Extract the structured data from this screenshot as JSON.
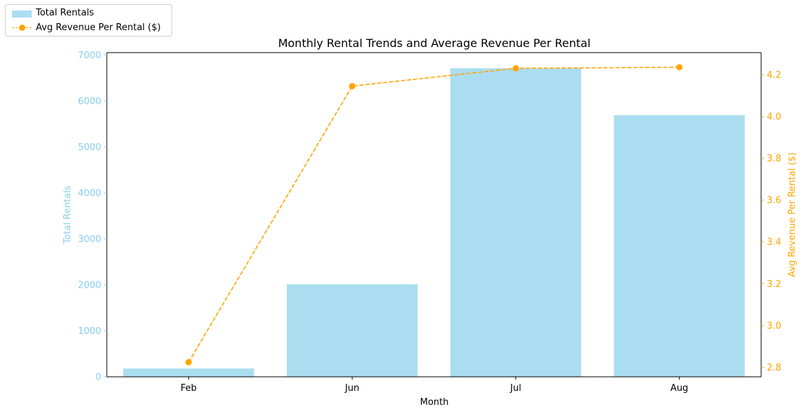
{
  "chart_data": {
    "type": "bar",
    "title": "Monthly Rental Trends and Average Revenue Per Rental",
    "xlabel": "Month",
    "categories": [
      "Feb",
      "Jun",
      "Jul",
      "Aug"
    ],
    "series": [
      {
        "name": "Total Rentals",
        "type": "bar",
        "axis": "left",
        "ylabel": "Total Rentals",
        "color": "#87ceeb",
        "values": [
          180,
          2010,
          6710,
          5690
        ]
      },
      {
        "name": "Avg Revenue Per Rental ($)",
        "type": "line",
        "axis": "right",
        "ylabel": "Avg Revenue Per Rental ($)",
        "color": "#ffa500",
        "line_style": "dashed",
        "marker": "circle",
        "values": [
          2.825,
          4.145,
          4.23,
          4.235
        ]
      }
    ],
    "left_axis": {
      "ylim": [
        0,
        7050
      ],
      "ticks": [
        0,
        1000,
        2000,
        3000,
        4000,
        5000,
        6000,
        7000
      ],
      "tick_labels": [
        "0",
        "1000",
        "2000",
        "3000",
        "4000",
        "5000",
        "6000",
        "7000"
      ]
    },
    "right_axis": {
      "ylim": [
        2.755,
        4.305
      ],
      "ticks": [
        2.8,
        3.0,
        3.2,
        3.4,
        3.6,
        3.8,
        4.0,
        4.2
      ],
      "tick_labels": [
        "2.8",
        "3.0",
        "3.2",
        "3.4",
        "3.6",
        "3.8",
        "4.0",
        "4.2"
      ]
    },
    "grid": false,
    "legend_position": "outside-top-left"
  }
}
